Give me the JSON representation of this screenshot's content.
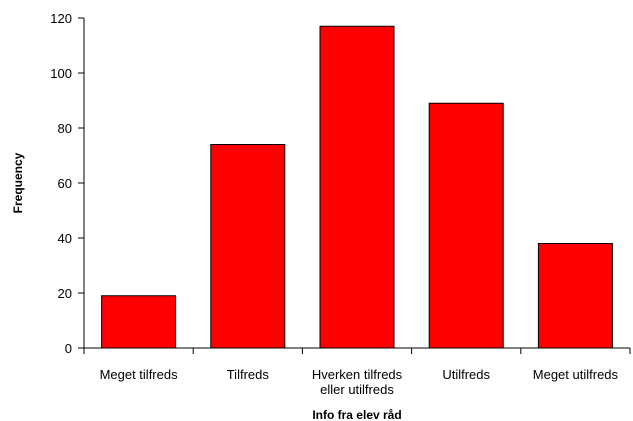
{
  "chart_data": {
    "type": "bar",
    "title": "",
    "xlabel": "Info fra elev råd",
    "ylabel": "Frequency",
    "categories": [
      [
        "Meget tilfreds"
      ],
      [
        "Tilfreds"
      ],
      [
        "Hverken tilfreds",
        "eller utilfreds"
      ],
      [
        "Utilfreds"
      ],
      [
        "Meget utilfreds"
      ]
    ],
    "values": [
      19,
      74,
      117,
      89,
      38
    ],
    "ylim": [
      0,
      120
    ],
    "yticks": [
      0,
      20,
      40,
      60,
      80,
      100,
      120
    ],
    "grid": false,
    "legend": "none",
    "bar_color": "#ff0000",
    "bar_edge_color": "#000000"
  }
}
